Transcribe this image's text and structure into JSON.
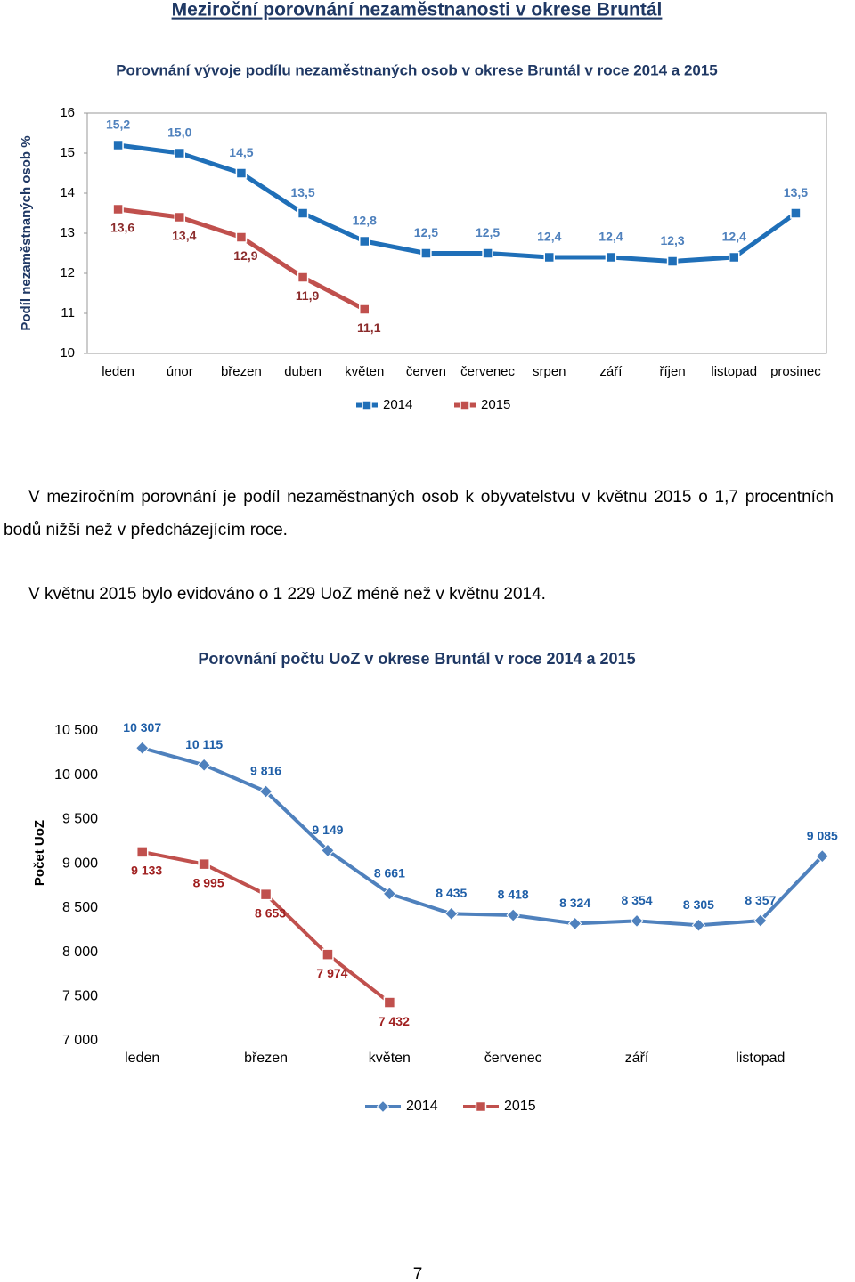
{
  "title": "Meziroční porovnání nezaměstnanosti v okrese Bruntál",
  "chart_data": [
    {
      "type": "line",
      "title": "Porovnání vývoje podílu nezaměstnaných osob v okrese Bruntál v roce 2014 a 2015",
      "y_label": "Podíl nezaměstnaných osob %",
      "categories": [
        "leden",
        "únor",
        "březen",
        "duben",
        "květen",
        "červen",
        "červenec",
        "srpen",
        "září",
        "říjen",
        "listopad",
        "prosinec"
      ],
      "series": [
        {
          "name": "2014",
          "color": "#1f6fb8",
          "label_color": "#4f81bd",
          "marker": "square",
          "values": [
            15.2,
            15.0,
            14.5,
            13.5,
            12.8,
            12.5,
            12.5,
            12.4,
            12.4,
            12.3,
            12.4,
            13.5
          ],
          "value_labels": [
            "15,2",
            "15,0",
            "14,5",
            "13,5",
            "12,8",
            "12,5",
            "12,5",
            "12,4",
            "12,4",
            "12,3",
            "12,4",
            "13,5"
          ]
        },
        {
          "name": "2015",
          "color": "#c0504d",
          "label_color": "#8b2b2b",
          "marker": "square",
          "values": [
            13.6,
            13.4,
            12.9,
            11.9,
            11.1,
            null,
            null,
            null,
            null,
            null,
            null,
            null
          ],
          "value_labels": [
            "13,6",
            "13,4",
            "12,9",
            "11,9",
            "11,1",
            null,
            null,
            null,
            null,
            null,
            null,
            null
          ]
        }
      ],
      "ylim": [
        10,
        16
      ],
      "yticks": [
        10,
        11,
        12,
        13,
        14,
        15,
        16
      ],
      "grid": false
    },
    {
      "type": "line",
      "title": "Porovnání počtu UoZ v okrese Bruntál v roce 2014 a 2015",
      "y_label": "Počet UoZ",
      "categories": [
        "leden",
        null,
        "březen",
        null,
        "květen",
        null,
        "červenec",
        null,
        "září",
        null,
        "listopad",
        null
      ],
      "series": [
        {
          "name": "2014",
          "color": "#4f81bd",
          "label_color": "#1f5fa8",
          "marker": "diamond",
          "values": [
            10307,
            10115,
            9816,
            9149,
            8661,
            8435,
            8418,
            8324,
            8354,
            8305,
            8357,
            9085
          ],
          "value_labels": [
            "10 307",
            "10 115",
            "9 816",
            "9 149",
            "8 661",
            "8 435",
            "8 418",
            "8 324",
            "8 354",
            "8 305",
            "8 357",
            "9 085"
          ]
        },
        {
          "name": "2015",
          "color": "#c0504d",
          "label_color": "#a02020",
          "marker": "square",
          "values": [
            9133,
            8995,
            8653,
            7974,
            7432,
            null,
            null,
            null,
            null,
            null,
            null,
            null
          ],
          "value_labels": [
            "9 133",
            "8 995",
            "8 653",
            "7 974",
            "7 432",
            null,
            null,
            null,
            null,
            null,
            null,
            null
          ]
        }
      ],
      "ylim": [
        7000,
        10500
      ],
      "yticks": [
        {
          "value": 7000,
          "label": "7 000"
        },
        {
          "value": 7500,
          "label": "7 500"
        },
        {
          "value": 8000,
          "label": "8 000"
        },
        {
          "value": 8500,
          "label": "8 500"
        },
        {
          "value": 9000,
          "label": "9 000"
        },
        {
          "value": 9500,
          "label": "9 500"
        },
        {
          "value": 10000,
          "label": "10 000"
        },
        {
          "value": 10500,
          "label": "10 500"
        }
      ],
      "grid": false
    }
  ],
  "paragraphs": [
    "V meziročním porovnání je podíl nezaměstnaných osob k obyvatelstvu v květnu 2015 o 1,7 procentních bodů nižší než v předcházejícím roce.",
    "V květnu 2015 bylo evidováno o 1 229 UoZ méně než v květnu 2014."
  ],
  "page_number": "7"
}
